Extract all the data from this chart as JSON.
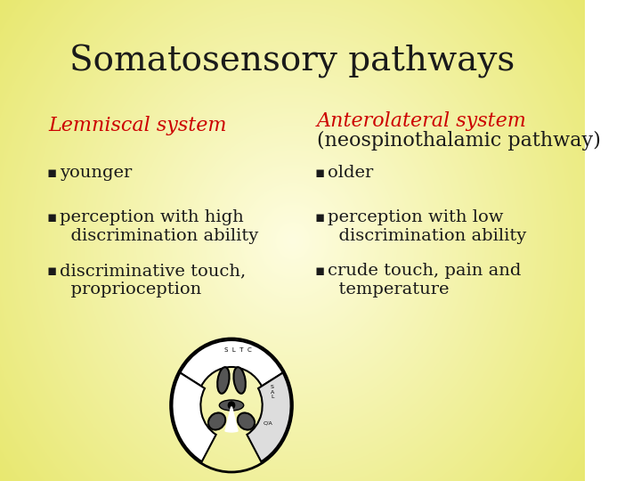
{
  "title": "Somatosensory pathways",
  "title_fontsize": 28,
  "title_color": "#1a1a1a",
  "title_font": "serif",
  "bg_color_center": "#fefde0",
  "bg_color_edge": "#f0e890",
  "left_heading": "Lemniscal system",
  "right_heading": "Anterolateral system",
  "right_subheading": "(neospinothalamic pathway)",
  "heading_color": "#cc0000",
  "heading_fontsize": 16,
  "body_color": "#1a1a1a",
  "body_fontsize": 14,
  "left_bullets": [
    "younger",
    "perception with high\n  discrimination ability",
    "discriminative touch,\n  proprioception"
  ],
  "right_bullets": [
    "older",
    "perception with low\n  discrimination ability",
    "crude touch, pain and\n  temperature"
  ]
}
